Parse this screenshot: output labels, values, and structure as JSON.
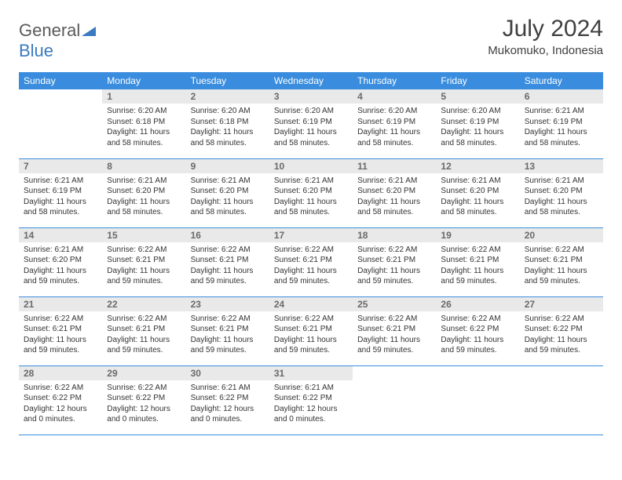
{
  "logo": {
    "text_gray": "General",
    "text_blue": "Blue"
  },
  "title": "July 2024",
  "location": "Mukomuko, Indonesia",
  "colors": {
    "header_bg": "#3a8dde",
    "header_text": "#ffffff",
    "daynum_bg": "#e9e9e9",
    "daynum_text": "#6a6a6a",
    "body_text": "#333333",
    "border": "#3a8dde",
    "logo_gray": "#5a5a5a",
    "logo_blue": "#3a7bbf"
  },
  "weekdays": [
    "Sunday",
    "Monday",
    "Tuesday",
    "Wednesday",
    "Thursday",
    "Friday",
    "Saturday"
  ],
  "weeks": [
    [
      null,
      {
        "n": "1",
        "sr": "6:20 AM",
        "ss": "6:18 PM",
        "dl": "11 hours and 58 minutes."
      },
      {
        "n": "2",
        "sr": "6:20 AM",
        "ss": "6:18 PM",
        "dl": "11 hours and 58 minutes."
      },
      {
        "n": "3",
        "sr": "6:20 AM",
        "ss": "6:19 PM",
        "dl": "11 hours and 58 minutes."
      },
      {
        "n": "4",
        "sr": "6:20 AM",
        "ss": "6:19 PM",
        "dl": "11 hours and 58 minutes."
      },
      {
        "n": "5",
        "sr": "6:20 AM",
        "ss": "6:19 PM",
        "dl": "11 hours and 58 minutes."
      },
      {
        "n": "6",
        "sr": "6:21 AM",
        "ss": "6:19 PM",
        "dl": "11 hours and 58 minutes."
      }
    ],
    [
      {
        "n": "7",
        "sr": "6:21 AM",
        "ss": "6:19 PM",
        "dl": "11 hours and 58 minutes."
      },
      {
        "n": "8",
        "sr": "6:21 AM",
        "ss": "6:20 PM",
        "dl": "11 hours and 58 minutes."
      },
      {
        "n": "9",
        "sr": "6:21 AM",
        "ss": "6:20 PM",
        "dl": "11 hours and 58 minutes."
      },
      {
        "n": "10",
        "sr": "6:21 AM",
        "ss": "6:20 PM",
        "dl": "11 hours and 58 minutes."
      },
      {
        "n": "11",
        "sr": "6:21 AM",
        "ss": "6:20 PM",
        "dl": "11 hours and 58 minutes."
      },
      {
        "n": "12",
        "sr": "6:21 AM",
        "ss": "6:20 PM",
        "dl": "11 hours and 58 minutes."
      },
      {
        "n": "13",
        "sr": "6:21 AM",
        "ss": "6:20 PM",
        "dl": "11 hours and 58 minutes."
      }
    ],
    [
      {
        "n": "14",
        "sr": "6:21 AM",
        "ss": "6:20 PM",
        "dl": "11 hours and 59 minutes."
      },
      {
        "n": "15",
        "sr": "6:22 AM",
        "ss": "6:21 PM",
        "dl": "11 hours and 59 minutes."
      },
      {
        "n": "16",
        "sr": "6:22 AM",
        "ss": "6:21 PM",
        "dl": "11 hours and 59 minutes."
      },
      {
        "n": "17",
        "sr": "6:22 AM",
        "ss": "6:21 PM",
        "dl": "11 hours and 59 minutes."
      },
      {
        "n": "18",
        "sr": "6:22 AM",
        "ss": "6:21 PM",
        "dl": "11 hours and 59 minutes."
      },
      {
        "n": "19",
        "sr": "6:22 AM",
        "ss": "6:21 PM",
        "dl": "11 hours and 59 minutes."
      },
      {
        "n": "20",
        "sr": "6:22 AM",
        "ss": "6:21 PM",
        "dl": "11 hours and 59 minutes."
      }
    ],
    [
      {
        "n": "21",
        "sr": "6:22 AM",
        "ss": "6:21 PM",
        "dl": "11 hours and 59 minutes."
      },
      {
        "n": "22",
        "sr": "6:22 AM",
        "ss": "6:21 PM",
        "dl": "11 hours and 59 minutes."
      },
      {
        "n": "23",
        "sr": "6:22 AM",
        "ss": "6:21 PM",
        "dl": "11 hours and 59 minutes."
      },
      {
        "n": "24",
        "sr": "6:22 AM",
        "ss": "6:21 PM",
        "dl": "11 hours and 59 minutes."
      },
      {
        "n": "25",
        "sr": "6:22 AM",
        "ss": "6:21 PM",
        "dl": "11 hours and 59 minutes."
      },
      {
        "n": "26",
        "sr": "6:22 AM",
        "ss": "6:22 PM",
        "dl": "11 hours and 59 minutes."
      },
      {
        "n": "27",
        "sr": "6:22 AM",
        "ss": "6:22 PM",
        "dl": "11 hours and 59 minutes."
      }
    ],
    [
      {
        "n": "28",
        "sr": "6:22 AM",
        "ss": "6:22 PM",
        "dl": "12 hours and 0 minutes."
      },
      {
        "n": "29",
        "sr": "6:22 AM",
        "ss": "6:22 PM",
        "dl": "12 hours and 0 minutes."
      },
      {
        "n": "30",
        "sr": "6:21 AM",
        "ss": "6:22 PM",
        "dl": "12 hours and 0 minutes."
      },
      {
        "n": "31",
        "sr": "6:21 AM",
        "ss": "6:22 PM",
        "dl": "12 hours and 0 minutes."
      },
      null,
      null,
      null
    ]
  ],
  "labels": {
    "sunrise": "Sunrise:",
    "sunset": "Sunset:",
    "daylight": "Daylight:"
  }
}
